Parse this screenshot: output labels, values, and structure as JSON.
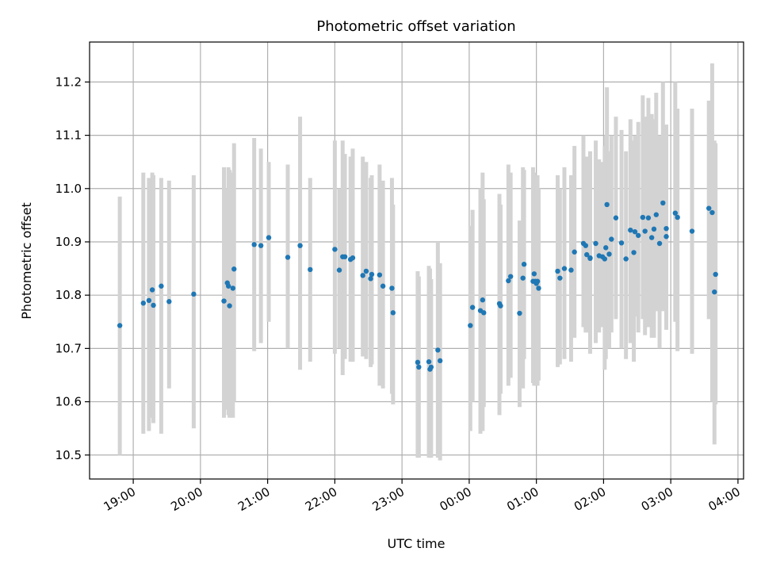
{
  "chart_data": {
    "type": "scatter",
    "title": "Photometric offset variation",
    "xlabel": "UTC time",
    "ylabel": "Photometric offset",
    "grid": true,
    "xlim": [
      "18:21",
      "04:05"
    ],
    "ylim": [
      10.455,
      11.275
    ],
    "x_ticks": [
      "19:00",
      "20:00",
      "21:00",
      "22:00",
      "23:00",
      "00:00",
      "01:00",
      "02:00",
      "03:00",
      "04:00"
    ],
    "y_ticks": [
      "10.5",
      "10.6",
      "10.7",
      "10.8",
      "10.9",
      "11.0",
      "11.1",
      "11.2"
    ],
    "colors": {
      "point": "#1f77b4",
      "errorbar": "#d3d3d3",
      "grid": "#b0b0b0"
    },
    "series": [
      {
        "x": [
          "18:48",
          "19:09",
          "19:14",
          "19:17",
          "19:18",
          "19:25",
          "19:32",
          "19:54",
          "20:21",
          "20:24",
          "20:25",
          "20:26",
          "20:29",
          "20:30",
          "20:48",
          "20:54",
          "21:01",
          "21:18",
          "21:29",
          "21:38",
          "22:00",
          "22:04",
          "22:07",
          "22:09",
          "22:14",
          "22:16",
          "22:25",
          "22:28",
          "22:32",
          "22:33",
          "22:40",
          "22:43",
          "22:51",
          "22:52",
          "23:14",
          "23:15",
          "23:24",
          "23:25",
          "23:26",
          "23:32",
          "23:34",
          "00:01",
          "00:03",
          "00:10",
          "00:12",
          "00:13",
          "00:27",
          "00:28",
          "00:35",
          "00:37",
          "00:45",
          "00:48",
          "00:49",
          "00:57",
          "00:58",
          "00:59",
          "01:00",
          "01:01",
          "01:02",
          "01:19",
          "01:21",
          "01:25",
          "01:31",
          "01:34",
          "01:42",
          "01:44",
          "01:45",
          "01:48",
          "01:48",
          "01:53",
          "01:56",
          "01:59",
          "02:01",
          "02:02",
          "02:03",
          "02:05",
          "02:07",
          "02:11",
          "02:16",
          "02:20",
          "02:24",
          "02:27",
          "02:28",
          "02:31",
          "02:35",
          "02:37",
          "02:40",
          "02:43",
          "02:45",
          "02:47",
          "02:50",
          "02:53",
          "02:56",
          "02:56",
          "03:04",
          "03:06",
          "03:19",
          "03:34",
          "03:37",
          "03:39",
          "03:40"
        ],
        "y": [
          10.743,
          10.785,
          10.79,
          10.81,
          10.781,
          10.817,
          10.788,
          10.802,
          10.789,
          10.823,
          10.817,
          10.78,
          10.813,
          10.849,
          10.895,
          10.893,
          10.908,
          10.871,
          10.893,
          10.848,
          10.886,
          10.847,
          10.872,
          10.872,
          10.867,
          10.87,
          10.837,
          10.845,
          10.831,
          10.839,
          10.838,
          10.817,
          10.813,
          10.767,
          10.674,
          10.665,
          10.675,
          10.661,
          10.665,
          10.697,
          10.677,
          10.743,
          10.777,
          10.771,
          10.791,
          10.767,
          10.784,
          10.78,
          10.827,
          10.835,
          10.766,
          10.832,
          10.858,
          10.826,
          10.84,
          10.826,
          10.822,
          10.826,
          10.813,
          10.845,
          10.832,
          10.85,
          10.847,
          10.881,
          10.897,
          10.893,
          10.876,
          10.869,
          10.87,
          10.897,
          10.874,
          10.872,
          10.868,
          10.889,
          10.97,
          10.877,
          10.905,
          10.945,
          10.898,
          10.868,
          10.922,
          10.88,
          10.919,
          10.912,
          10.946,
          10.92,
          10.945,
          10.908,
          10.924,
          10.951,
          10.897,
          10.973,
          10.925,
          10.91,
          10.954,
          10.946,
          10.92,
          10.963,
          10.955,
          10.806,
          10.839
        ],
        "yerr_low": [
          10.5,
          10.54,
          10.545,
          10.57,
          10.56,
          10.54,
          10.625,
          10.55,
          10.57,
          10.585,
          10.575,
          10.57,
          10.57,
          10.6,
          10.695,
          10.71,
          10.75,
          10.7,
          10.66,
          10.675,
          10.69,
          10.7,
          10.65,
          10.68,
          10.675,
          10.675,
          10.685,
          10.68,
          10.665,
          10.67,
          10.63,
          10.625,
          10.615,
          10.595,
          10.495,
          10.495,
          10.495,
          10.495,
          10.495,
          10.495,
          10.49,
          10.545,
          10.6,
          10.54,
          10.545,
          10.59,
          10.575,
          10.615,
          10.63,
          10.645,
          10.59,
          10.625,
          10.68,
          10.635,
          10.63,
          10.635,
          10.63,
          10.63,
          10.64,
          10.665,
          10.67,
          10.68,
          10.675,
          10.72,
          10.74,
          10.73,
          10.73,
          10.72,
          10.69,
          10.71,
          10.73,
          10.74,
          10.66,
          10.68,
          10.765,
          10.7,
          10.73,
          10.755,
          10.7,
          10.68,
          10.71,
          10.675,
          10.76,
          10.73,
          10.755,
          10.725,
          10.74,
          10.72,
          10.72,
          10.77,
          10.7,
          10.77,
          10.735,
          10.75,
          10.75,
          10.695,
          10.69,
          10.755,
          10.6,
          10.52,
          10.595
        ],
        "yerr_high": [
          10.985,
          11.03,
          11.02,
          11.03,
          11.025,
          11.02,
          11.015,
          11.025,
          11.04,
          11.0,
          11.04,
          11.035,
          11.03,
          11.085,
          11.095,
          11.075,
          11.05,
          11.045,
          11.135,
          11.02,
          11.09,
          11.0,
          11.09,
          11.065,
          11.06,
          11.075,
          11.06,
          11.05,
          11.02,
          11.025,
          11.045,
          11.015,
          11.02,
          10.97,
          10.845,
          10.835,
          10.855,
          10.85,
          10.83,
          10.9,
          10.86,
          10.93,
          10.96,
          11.0,
          11.03,
          10.98,
          10.99,
          10.97,
          11.045,
          11.03,
          10.94,
          11.04,
          11.035,
          11.04,
          11.03,
          11.02,
          11.02,
          11.025,
          11.0,
          11.025,
          11.0,
          11.04,
          11.025,
          11.08,
          11.1,
          11.06,
          11.06,
          11.06,
          11.07,
          11.09,
          11.055,
          11.05,
          11.08,
          11.1,
          11.19,
          11.07,
          11.1,
          11.135,
          11.11,
          11.07,
          11.13,
          11.09,
          11.1,
          11.125,
          11.175,
          11.135,
          11.17,
          11.14,
          11.13,
          11.18,
          11.1,
          11.2,
          11.12,
          11.1,
          11.2,
          11.15,
          11.15,
          11.165,
          11.235,
          11.09,
          11.085
        ]
      }
    ]
  }
}
